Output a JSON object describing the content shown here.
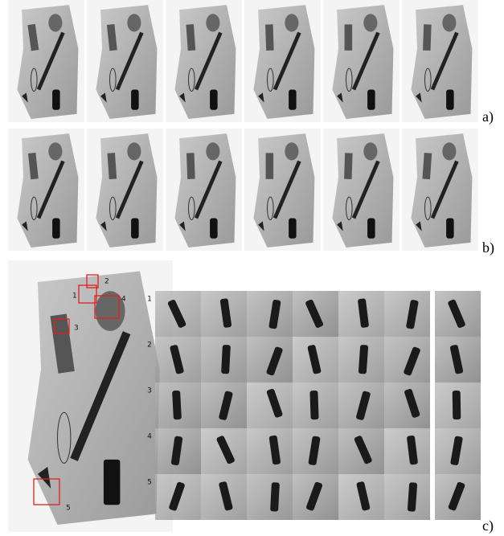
{
  "panels": {
    "a": {
      "label": "a)"
    },
    "b": {
      "label": "b)"
    },
    "c": {
      "label": "c)",
      "overview_markers": [
        "1",
        "2",
        "3",
        "4",
        "5"
      ],
      "row_labels": [
        "1",
        "2",
        "3",
        "4",
        "5"
      ]
    }
  }
}
